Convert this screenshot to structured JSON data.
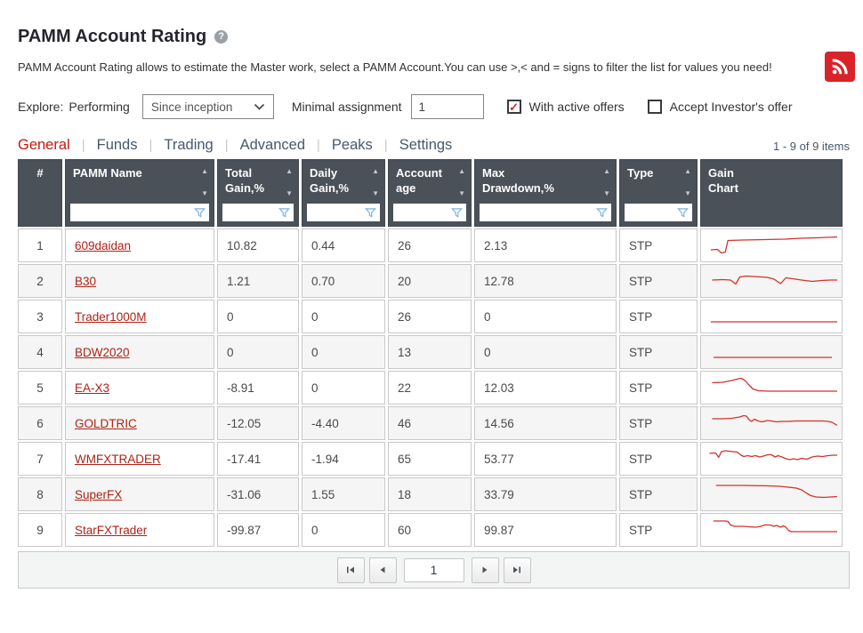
{
  "page": {
    "title": "PAMM Account Rating",
    "help_icon": "?",
    "description": "PAMM Account Rating allows to estimate the Master work, select a PAMM Account.You can use >,< and = signs to filter the list for values you need!"
  },
  "filters": {
    "explore_label": "Explore:",
    "performing_label": "Performing",
    "period_value": "Since inception",
    "minimal_assignment_label": "Minimal assignment",
    "minimal_assignment_value": "1",
    "with_active_offers_label": "With active offers",
    "with_active_offers_checked": true,
    "accept_investors_offer_label": "Accept Investor's offer",
    "accept_investors_offer_checked": false
  },
  "tabs": {
    "items": [
      {
        "label": "General",
        "active": true
      },
      {
        "label": "Funds",
        "active": false
      },
      {
        "label": "Trading",
        "active": false
      },
      {
        "label": "Advanced",
        "active": false
      },
      {
        "label": "Peaks",
        "active": false
      },
      {
        "label": "Settings",
        "active": false
      }
    ]
  },
  "grid": {
    "items_count": "1 - 9 of 9 items",
    "columns": [
      {
        "id": "idx",
        "lines": [
          "#"
        ],
        "sortable": false,
        "filterable": false,
        "align": "center"
      },
      {
        "id": "name",
        "lines": [
          "PAMM Name"
        ],
        "sortable": true,
        "filterable": true
      },
      {
        "id": "total_gain",
        "lines": [
          "Total",
          "Gain,%"
        ],
        "sortable": true,
        "filterable": true
      },
      {
        "id": "daily_gain",
        "lines": [
          "Daily",
          "Gain,%"
        ],
        "sortable": true,
        "filterable": true
      },
      {
        "id": "account_age",
        "lines": [
          "Account",
          "age"
        ],
        "sortable": true,
        "filterable": true
      },
      {
        "id": "max_drawdown",
        "lines": [
          "Max",
          "Drawdown,%"
        ],
        "sortable": true,
        "filterable": true
      },
      {
        "id": "type",
        "lines": [
          "Type"
        ],
        "sortable": true,
        "filterable": true
      },
      {
        "id": "gain_chart",
        "lines": [
          "Gain",
          "Chart"
        ],
        "sortable": false,
        "filterable": false
      }
    ],
    "rows": [
      {
        "idx": "1",
        "name": "609daidan",
        "total_gain": "10.82",
        "daily_gain": "0.44",
        "account_age": "26",
        "max_drawdown": "2.13",
        "type": "STP"
      },
      {
        "idx": "2",
        "name": "B30",
        "total_gain": "1.21",
        "daily_gain": "0.70",
        "account_age": "20",
        "max_drawdown": "12.78",
        "type": "STP"
      },
      {
        "idx": "3",
        "name": "Trader1000M",
        "total_gain": "0",
        "daily_gain": "0",
        "account_age": "26",
        "max_drawdown": "0",
        "type": "STP"
      },
      {
        "idx": "4",
        "name": "BDW2020",
        "total_gain": "0",
        "daily_gain": "0",
        "account_age": "13",
        "max_drawdown": "0",
        "type": "STP"
      },
      {
        "idx": "5",
        "name": "EA-X3",
        "total_gain": "-8.91",
        "daily_gain": "0",
        "account_age": "22",
        "max_drawdown": "12.03",
        "type": "STP"
      },
      {
        "idx": "6",
        "name": "GOLDTRIC",
        "total_gain": "-12.05",
        "daily_gain": "-4.40",
        "account_age": "46",
        "max_drawdown": "14.56",
        "type": "STP"
      },
      {
        "idx": "7",
        "name": "WMFXTRADER",
        "total_gain": "-17.41",
        "daily_gain": "-1.94",
        "account_age": "65",
        "max_drawdown": "53.77",
        "type": "STP"
      },
      {
        "idx": "8",
        "name": "SuperFX",
        "total_gain": "-31.06",
        "daily_gain": "1.55",
        "account_age": "18",
        "max_drawdown": "33.79",
        "type": "STP"
      },
      {
        "idx": "9",
        "name": "StarFXTrader",
        "total_gain": "-99.87",
        "daily_gain": "0",
        "account_age": "60",
        "max_drawdown": "99.87",
        "type": "STP"
      }
    ]
  },
  "chart_data": [
    {
      "name": "609daidan",
      "type": "line",
      "points": [
        [
          4,
          21
        ],
        [
          9,
          20.5
        ],
        [
          12,
          24.5
        ],
        [
          15,
          23.5
        ],
        [
          17,
          10.5
        ],
        [
          28,
          10
        ],
        [
          45,
          9.5
        ],
        [
          60,
          9
        ],
        [
          72,
          8
        ],
        [
          85,
          7.5
        ],
        [
          100,
          6.5
        ]
      ]
    },
    {
      "name": "B30",
      "type": "line",
      "points": [
        [
          5,
          15
        ],
        [
          13,
          14.5
        ],
        [
          19,
          15
        ],
        [
          23,
          19.5
        ],
        [
          26,
          11.5
        ],
        [
          31,
          10.5
        ],
        [
          36,
          11
        ],
        [
          42,
          11.5
        ],
        [
          47,
          12
        ],
        [
          52,
          14
        ],
        [
          57,
          19
        ],
        [
          61,
          12.5
        ],
        [
          66,
          13.5
        ],
        [
          73,
          15
        ],
        [
          81,
          16.5
        ],
        [
          88,
          15.5
        ],
        [
          95,
          15
        ],
        [
          100,
          15
        ]
      ]
    },
    {
      "name": "Trader1000M",
      "type": "line",
      "points": [
        [
          4,
          22
        ],
        [
          100,
          22
        ]
      ]
    },
    {
      "name": "BDW2020",
      "type": "line",
      "points": [
        [
          6,
          22
        ],
        [
          96,
          22
        ]
      ]
    },
    {
      "name": "EA-X3",
      "type": "line",
      "points": [
        [
          5,
          10.5
        ],
        [
          13,
          10
        ],
        [
          20,
          8
        ],
        [
          25,
          6
        ],
        [
          27,
          5.5
        ],
        [
          30,
          8
        ],
        [
          33,
          13
        ],
        [
          36,
          17.5
        ],
        [
          40,
          19.5
        ],
        [
          48,
          20
        ],
        [
          100,
          20
        ]
      ]
    },
    {
      "name": "GOLDTRIC",
      "type": "line",
      "points": [
        [
          5,
          11
        ],
        [
          13,
          11
        ],
        [
          20,
          10.5
        ],
        [
          26,
          9
        ],
        [
          29,
          7.5
        ],
        [
          31,
          8
        ],
        [
          33,
          12
        ],
        [
          35,
          14
        ],
        [
          37,
          11.5
        ],
        [
          40,
          13.5
        ],
        [
          43,
          14.5
        ],
        [
          47,
          13
        ],
        [
          50,
          13.5
        ],
        [
          54,
          14.5
        ],
        [
          58,
          14
        ],
        [
          63,
          14
        ],
        [
          69,
          13.5
        ],
        [
          76,
          13.5
        ],
        [
          83,
          13.5
        ],
        [
          89,
          13.5
        ],
        [
          93,
          14
        ],
        [
          96,
          15
        ],
        [
          100,
          18.5
        ]
      ]
    },
    {
      "name": "WMFXTRADER",
      "type": "line",
      "points": [
        [
          3,
          10
        ],
        [
          6,
          9.5
        ],
        [
          8,
          10
        ],
        [
          10,
          14.5
        ],
        [
          12,
          8
        ],
        [
          15,
          7
        ],
        [
          18,
          7.5
        ],
        [
          21,
          8
        ],
        [
          24,
          8.5
        ],
        [
          27,
          12
        ],
        [
          29,
          13.5
        ],
        [
          32,
          12.5
        ],
        [
          35,
          13.5
        ],
        [
          38,
          12.5
        ],
        [
          41,
          14
        ],
        [
          44,
          13
        ],
        [
          47,
          11.5
        ],
        [
          50,
          11.5
        ],
        [
          53,
          14
        ],
        [
          55,
          12.5
        ],
        [
          58,
          14
        ],
        [
          61,
          16
        ],
        [
          64,
          17
        ],
        [
          67,
          16
        ],
        [
          70,
          17
        ],
        [
          73,
          15.5
        ],
        [
          77,
          16.5
        ],
        [
          81,
          14
        ],
        [
          85,
          13
        ],
        [
          89,
          13.5
        ],
        [
          93,
          12.5
        ],
        [
          97,
          12
        ],
        [
          100,
          12
        ]
      ]
    },
    {
      "name": "SuperFX",
      "type": "line",
      "points": [
        [
          8,
          6
        ],
        [
          28,
          6
        ],
        [
          48,
          6.5
        ],
        [
          56,
          7
        ],
        [
          63,
          8
        ],
        [
          69,
          9
        ],
        [
          73,
          11
        ],
        [
          77,
          15
        ],
        [
          80,
          17.5
        ],
        [
          84,
          19
        ],
        [
          90,
          19.5
        ],
        [
          100,
          18.5
        ]
      ]
    },
    {
      "name": "StarFXTrader",
      "type": "line",
      "points": [
        [
          6,
          6
        ],
        [
          15,
          6
        ],
        [
          17,
          6.5
        ],
        [
          19,
          10.5
        ],
        [
          22,
          12
        ],
        [
          28,
          12
        ],
        [
          33,
          12.5
        ],
        [
          38,
          13
        ],
        [
          42,
          12
        ],
        [
          45,
          10.5
        ],
        [
          49,
          10.5
        ],
        [
          52,
          12
        ],
        [
          54,
          11
        ],
        [
          57,
          13
        ],
        [
          59,
          11.5
        ],
        [
          61,
          13
        ],
        [
          63,
          16.5
        ],
        [
          65,
          18
        ],
        [
          72,
          18
        ],
        [
          100,
          18
        ]
      ]
    }
  ],
  "pagination": {
    "page_value": "1"
  },
  "colors": {
    "accent_red": "#c01b13",
    "link_red": "#ae2217",
    "rss_red": "#d8232a",
    "spark_red": "#d2322d",
    "header_bg": "#4a5159",
    "funnel_blue": "#79b3e2"
  }
}
